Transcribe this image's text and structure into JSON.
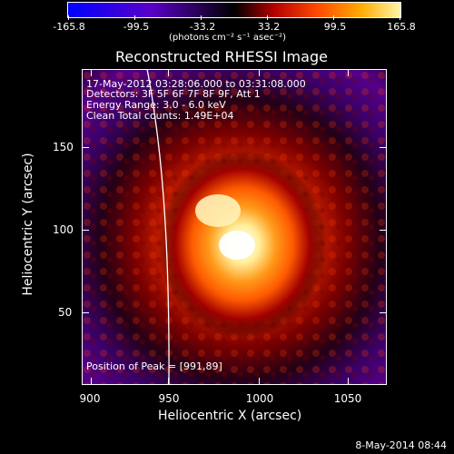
{
  "colorbar": {
    "ticks": [
      "-165.8",
      "-99.5",
      "-33.2",
      "33.2",
      "99.5",
      "165.8"
    ],
    "units": "(photons cm⁻² s⁻¹ asec⁻²)"
  },
  "title": "Reconstructed RHESSI Image",
  "info": {
    "line1": "17-May-2012 03:28:06.000 to 03:31:08.000",
    "line2": "Detectors: 3F 5F 6F 7F 8F 9F, Att 1",
    "line3": "Energy Range: 3.0 - 6.0 keV",
    "line4": "Clean     Total counts: 1.49E+04"
  },
  "peak": "Position of Peak = [991,89]",
  "axes": {
    "xlabel": "Heliocentric X (arcsec)",
    "ylabel": "Heliocentric Y (arcsec)",
    "xticks": [
      "900",
      "950",
      "1000",
      "1050"
    ],
    "yticks": [
      "150",
      "100",
      "50"
    ]
  },
  "footer": "8-May-2014 08:44",
  "colors": {
    "bright": "#ffffff",
    "hot": "#ff9a1a",
    "mid": "#c11b00",
    "dark": "#55008a"
  }
}
